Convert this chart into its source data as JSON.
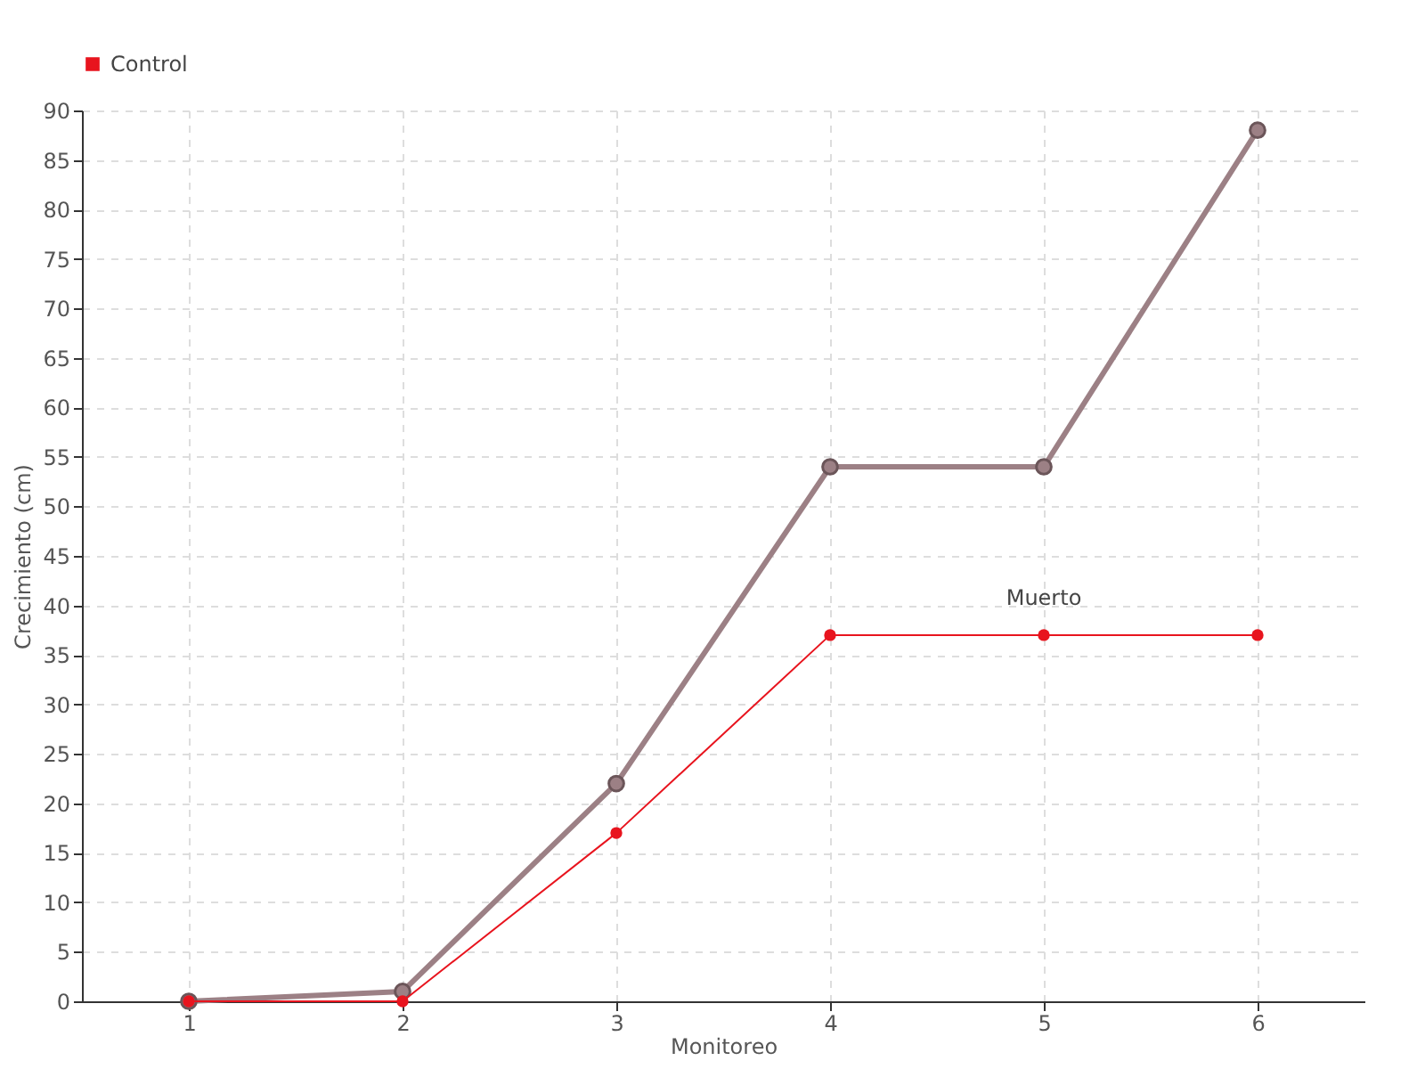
{
  "chart_data": {
    "type": "line",
    "xlabel": "Monitoreo",
    "ylabel": "Crecimiento (cm)",
    "categories": [
      "1",
      "2",
      "3",
      "4",
      "5",
      "6"
    ],
    "series": [
      {
        "color": "#9c8085",
        "values": [
          0,
          1,
          22,
          54,
          54,
          88
        ]
      },
      {
        "name": "Control",
        "color": "#e8141e",
        "values": [
          0,
          0,
          17,
          37,
          37,
          37
        ]
      }
    ],
    "ylim": [
      0,
      90
    ],
    "yticks": [
      0,
      5,
      10,
      15,
      20,
      25,
      30,
      35,
      40,
      45,
      50,
      55,
      60,
      65,
      70,
      75,
      80,
      85,
      90
    ],
    "grid": true,
    "legend": "top left",
    "marker": "circle",
    "annotations": [
      {
        "text": "Muerto",
        "x": "5",
        "y": 37
      }
    ]
  }
}
